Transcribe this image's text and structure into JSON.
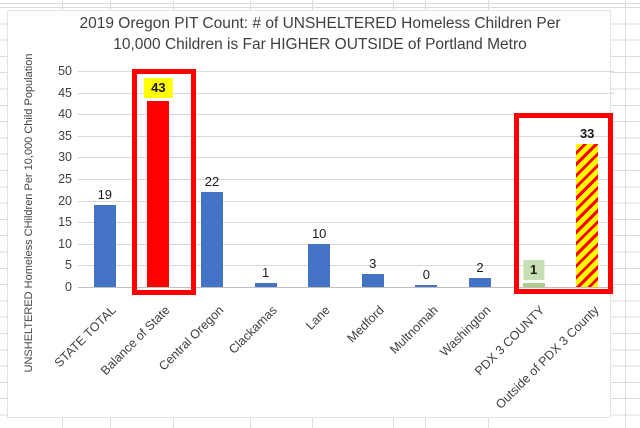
{
  "chart_data": {
    "type": "bar",
    "title": "2019 Oregon PIT Count: # of UNSHELTERED Homeless Children Per 10,000 Children is Far HIGHER OUTSIDE of Portland Metro",
    "title_lines": [
      "2019 Oregon PIT Count: # of UNSHELTERED Homeless Children Per",
      "10,000 Children is Far HIGHER OUTSIDE of Portland Metro"
    ],
    "xlabel": "",
    "ylabel": "UNSHELTERED Homeless CHildren Per 10,000 Child Population",
    "categories": [
      "STATE TOTAL",
      "Balance of State",
      "Central Oregon",
      "Clackamas",
      "Lane",
      "Medford",
      "Multnomah",
      "Washington",
      "PDX 3 COUNTY",
      "Outside of PDX 3 County"
    ],
    "values": [
      19,
      43,
      22,
      1,
      10,
      3,
      0,
      2,
      1,
      33
    ],
    "ylim": [
      0,
      50
    ],
    "yticks": [
      0,
      5,
      10,
      15,
      20,
      25,
      30,
      35,
      40,
      45,
      50
    ],
    "grid": true,
    "legend": false,
    "bar_styles": [
      {
        "fill": "#4472C4"
      },
      {
        "fill": "#FF0000",
        "label_highlight": "#FFFF00",
        "label_bold": true
      },
      {
        "fill": "#4472C4"
      },
      {
        "fill": "#4472C4"
      },
      {
        "fill": "#4472C4"
      },
      {
        "fill": "#4472C4"
      },
      {
        "fill": "#4472C4"
      },
      {
        "fill": "#4472C4"
      },
      {
        "fill": "#A9D08E",
        "label_highlight": "#C6E0B4",
        "label_bold": true
      },
      {
        "fill": "stripes",
        "stripe_colors": [
          "#FFFF00",
          "#FF0000"
        ],
        "label_bold": true
      }
    ],
    "annotations": [
      {
        "name": "red-emphasis-box-balance-of-state",
        "target": "Balance of State"
      },
      {
        "name": "red-emphasis-box-pdx-comparison",
        "target": "PDX 3 COUNTY vs Outside of PDX 3 County"
      }
    ]
  },
  "colors": {
    "bar_default": "#4472C4",
    "emphasis_red": "#FF0000",
    "highlight_yellow": "#FFFF00",
    "green_bar": "#A9D08E",
    "green_highlight": "#C6E0B4",
    "gridline": "#D9D9D9",
    "axis_line": "#BFBFBF",
    "axis_text": "#404040"
  }
}
